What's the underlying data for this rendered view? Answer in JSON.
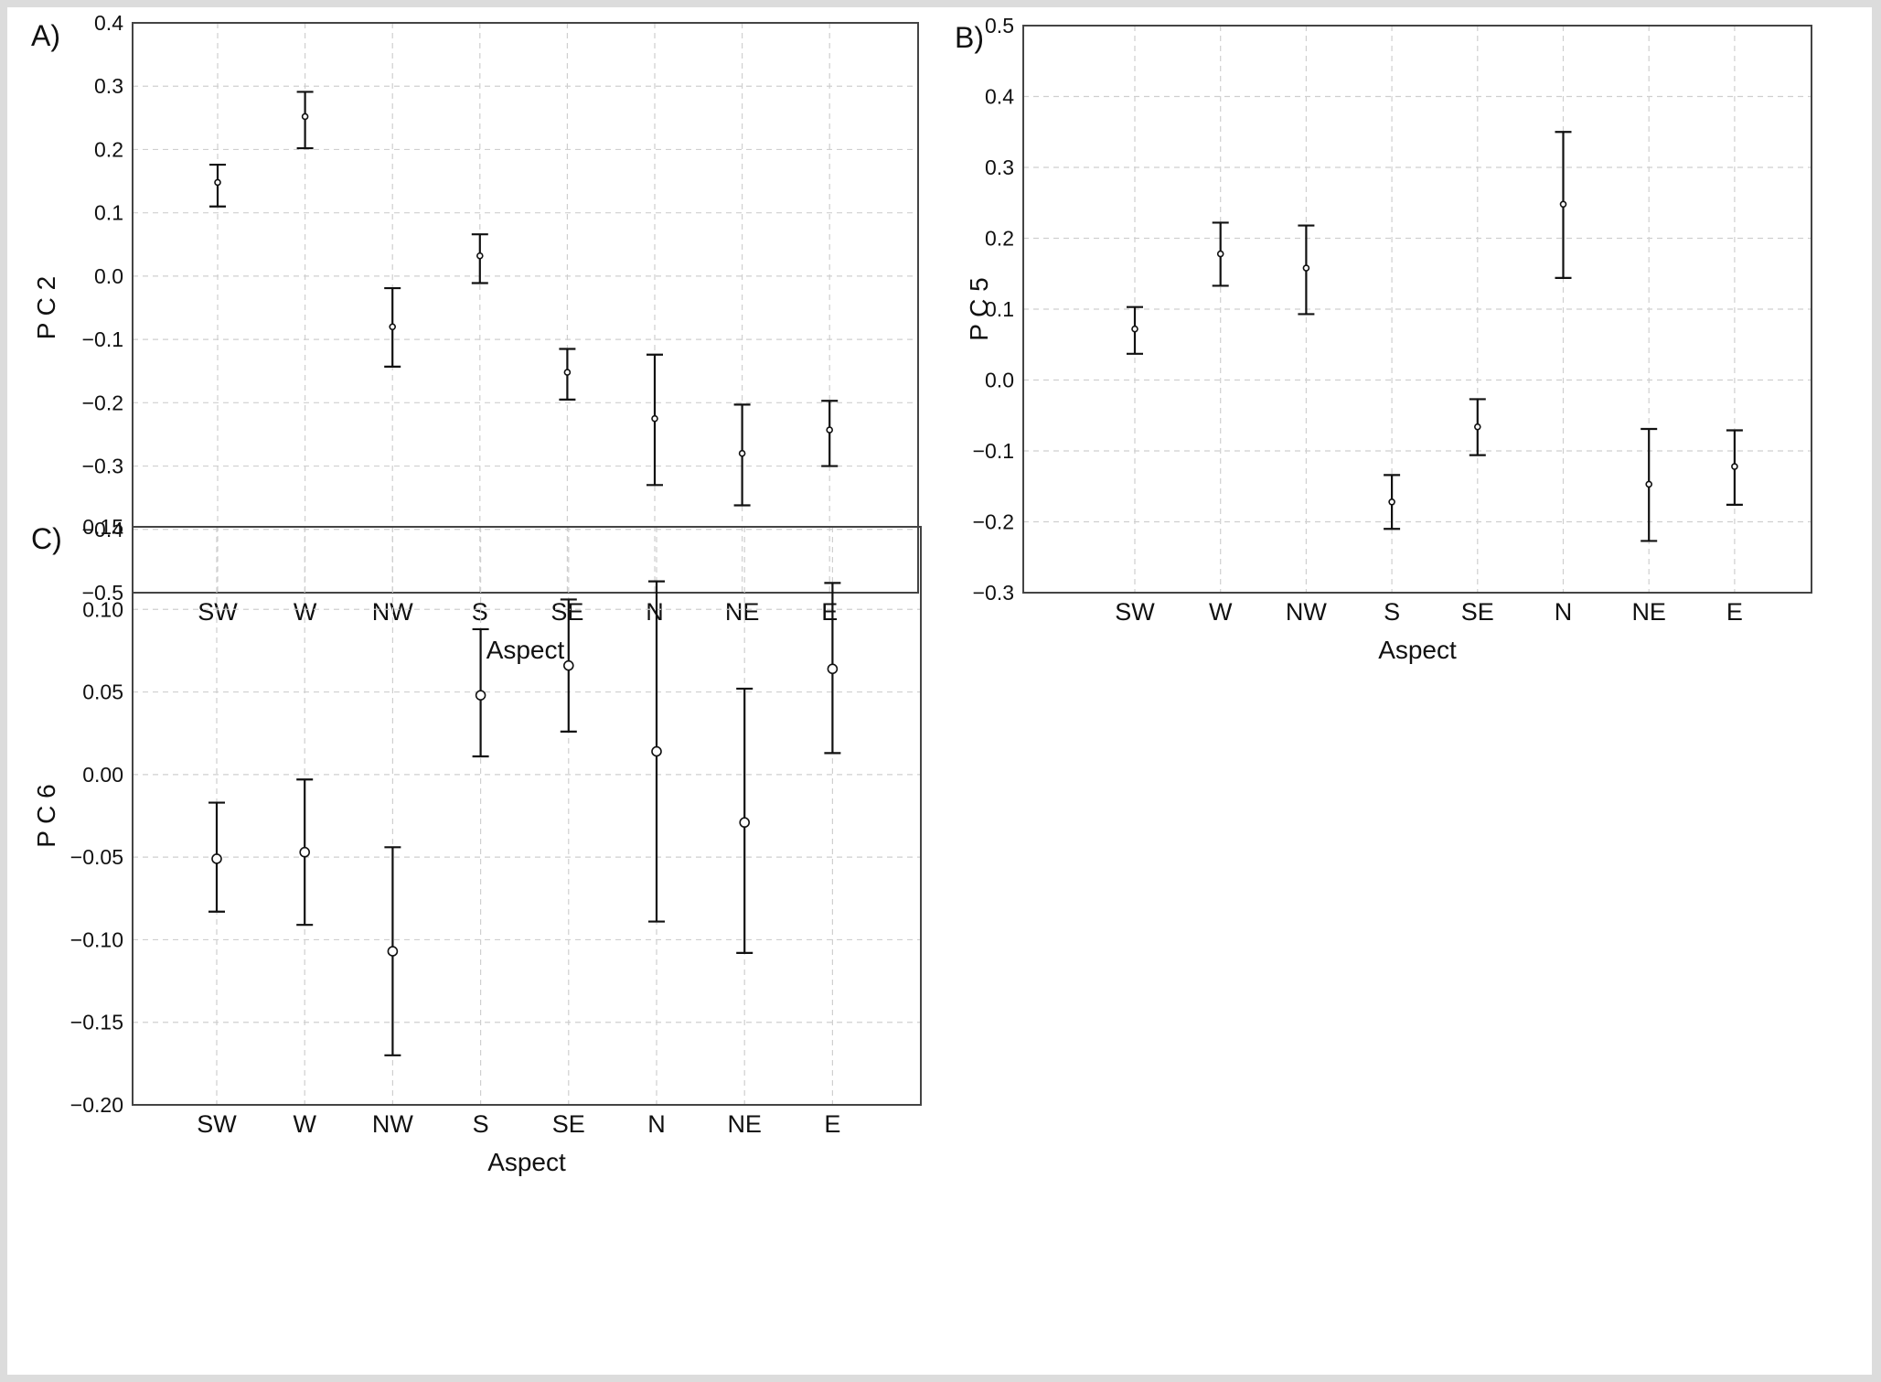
{
  "chart_data": [
    {
      "panel": "A)",
      "type": "scatter",
      "error_bars": true,
      "xlabel": "Aspect",
      "ylabel": "P C 2",
      "categories": [
        "SW",
        "W",
        "NW",
        "S",
        "SE",
        "N",
        "NE",
        "E"
      ],
      "ylim": [
        -0.5,
        0.4
      ],
      "yticks": [
        "0.4",
        "0.3",
        "0.2",
        "0.1",
        "0.0",
        "−0.1",
        "−0.2",
        "−0.3",
        "−0.4",
        "−0.5"
      ],
      "ytick_values": [
        0.4,
        0.3,
        0.2,
        0.1,
        0.0,
        -0.1,
        -0.2,
        -0.3,
        -0.4,
        -0.5
      ],
      "grid": true,
      "mean": [
        0.148,
        0.252,
        -0.08,
        0.032,
        -0.152,
        -0.225,
        -0.28,
        -0.243
      ],
      "lower": [
        0.11,
        0.202,
        -0.143,
        -0.011,
        -0.195,
        -0.33,
        -0.362,
        -0.3
      ],
      "upper": [
        0.176,
        0.291,
        -0.019,
        0.066,
        -0.115,
        -0.124,
        -0.203,
        -0.197
      ]
    },
    {
      "panel": "B)",
      "type": "scatter",
      "error_bars": true,
      "xlabel": "Aspect",
      "ylabel": "P C 5",
      "categories": [
        "SW",
        "W",
        "NW",
        "S",
        "SE",
        "N",
        "NE",
        "E"
      ],
      "ylim": [
        -0.3,
        0.5
      ],
      "yticks": [
        "0.5",
        "0.4",
        "0.3",
        "0.2",
        "0.1",
        "0.0",
        "−0.1",
        "−0.2",
        "−0.3"
      ],
      "ytick_values": [
        0.5,
        0.4,
        0.3,
        0.2,
        0.1,
        0.0,
        -0.1,
        -0.2,
        -0.3
      ],
      "grid": true,
      "mean": [
        0.072,
        0.178,
        0.158,
        -0.172,
        -0.066,
        0.248,
        -0.147,
        -0.122
      ],
      "lower": [
        0.037,
        0.133,
        0.093,
        -0.21,
        -0.106,
        0.144,
        -0.227,
        -0.176
      ],
      "upper": [
        0.103,
        0.222,
        0.218,
        -0.134,
        -0.027,
        0.35,
        -0.069,
        -0.071
      ]
    },
    {
      "panel": "C)",
      "type": "scatter",
      "error_bars": true,
      "xlabel": "Aspect",
      "ylabel": "P C 6",
      "categories": [
        "SW",
        "W",
        "NW",
        "S",
        "SE",
        "N",
        "NE",
        "E"
      ],
      "ylim": [
        -0.2,
        0.15
      ],
      "yticks": [
        "0.15",
        "0.10",
        "0.05",
        "0.00",
        "−0.05",
        "−0.10",
        "−0.15",
        "−0.20"
      ],
      "ytick_values": [
        0.15,
        0.1,
        0.05,
        0.0,
        -0.05,
        -0.1,
        -0.15,
        -0.2
      ],
      "grid": true,
      "mean": [
        -0.051,
        -0.047,
        -0.107,
        0.048,
        0.066,
        0.014,
        -0.029,
        0.064
      ],
      "lower": [
        -0.083,
        -0.091,
        -0.17,
        0.011,
        0.026,
        -0.089,
        -0.108,
        0.013
      ],
      "upper": [
        -0.017,
        -0.003,
        -0.044,
        0.088,
        0.106,
        0.117,
        0.052,
        0.116
      ]
    }
  ]
}
